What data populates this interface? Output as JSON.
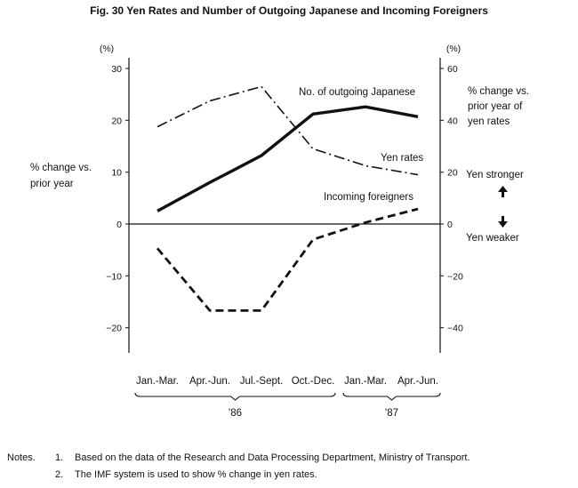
{
  "chart_data": {
    "type": "line",
    "title": "Fig. 30  Yen Rates and Number of Outgoing Japanese and Incoming Foreigners",
    "categories": [
      "Jan.-Mar.",
      "Apr.-Jun.",
      "Jul.-Sept.",
      "Oct.-Dec.",
      "Jan.-Mar.",
      "Apr.-Jun."
    ],
    "year_groups": [
      {
        "label": "'86",
        "from": 0,
        "to": 3
      },
      {
        "label": "'87",
        "from": 4,
        "to": 5
      }
    ],
    "left_axis": {
      "unit": "(%)",
      "label_lines": [
        "% change vs.",
        "prior year"
      ],
      "ylim": [
        -25,
        30
      ],
      "ticks": [
        30,
        20,
        10,
        0,
        -10,
        -20
      ],
      "tick_labels": [
        "30",
        "20",
        "10",
        "0",
        "−10",
        "−20"
      ]
    },
    "right_axis": {
      "unit": "(%)",
      "label_lines": [
        "% change vs.",
        "prior year of",
        "yen rates"
      ],
      "ylim": [
        -50,
        60
      ],
      "ticks": [
        60,
        40,
        20,
        0,
        -20,
        -40
      ],
      "tick_labels": [
        "60",
        "40",
        "20",
        "0",
        "−20",
        "−40"
      ]
    },
    "series": [
      {
        "name": "No. of outgoing Japanese",
        "axis": "left",
        "style": "solid",
        "values": [
          2.5,
          8,
          13.2,
          21.2,
          22.6,
          20.7
        ]
      },
      {
        "name": "Yen rates",
        "axis": "right",
        "style": "dashdot",
        "values": [
          37.5,
          47.5,
          53,
          29,
          22.5,
          19
        ]
      },
      {
        "name": "Incoming foreigners",
        "axis": "left",
        "style": "dashed",
        "values": [
          -4.7,
          -16.7,
          -16.7,
          -3,
          0.3,
          2.9
        ]
      }
    ],
    "annotations": {
      "yen_stronger": "Yen stronger",
      "yen_weaker": "Yen weaker"
    },
    "grid": false,
    "colors": {
      "ink": "#111111"
    }
  },
  "notes": {
    "heading": "Notes.",
    "items": [
      {
        "num": "1.",
        "text": "Based on the data of the Research and Data Processing Department, Ministry of Transport."
      },
      {
        "num": "2.",
        "text": "The IMF system is used to show % change in yen rates."
      }
    ]
  }
}
